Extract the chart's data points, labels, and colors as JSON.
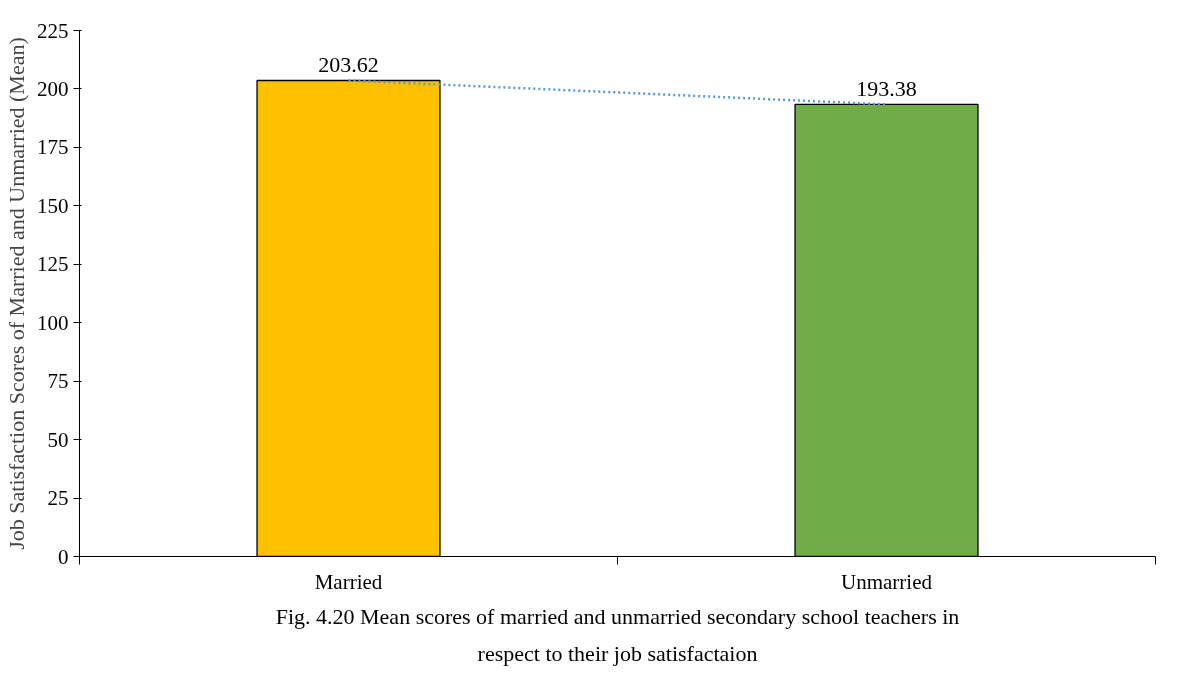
{
  "chart_data": {
    "type": "bar",
    "categories": [
      "Married",
      "Unmarried"
    ],
    "ylabel": "Job Satisfaction Scores of Married and Unmarried (Mean)",
    "ylim": [
      0,
      225
    ],
    "yticks": [
      0,
      25,
      50,
      75,
      100,
      125,
      150,
      175,
      200,
      225
    ],
    "grid": false,
    "series": [
      {
        "colors": [
          "#ffc000",
          "#70ad47"
        ],
        "values": [
          203.62,
          193.38
        ],
        "value_labels": [
          "203.62",
          "193.38"
        ]
      },
      {
        "type": "line",
        "color": "#5b9bd5",
        "line_style": "dotted",
        "values": [
          203.62,
          193.38
        ]
      }
    ],
    "annotations": [
      "Fig. 4.20 Mean scores of married and unmarried secondary school teachers in respect to their job satisfactaion"
    ]
  }
}
